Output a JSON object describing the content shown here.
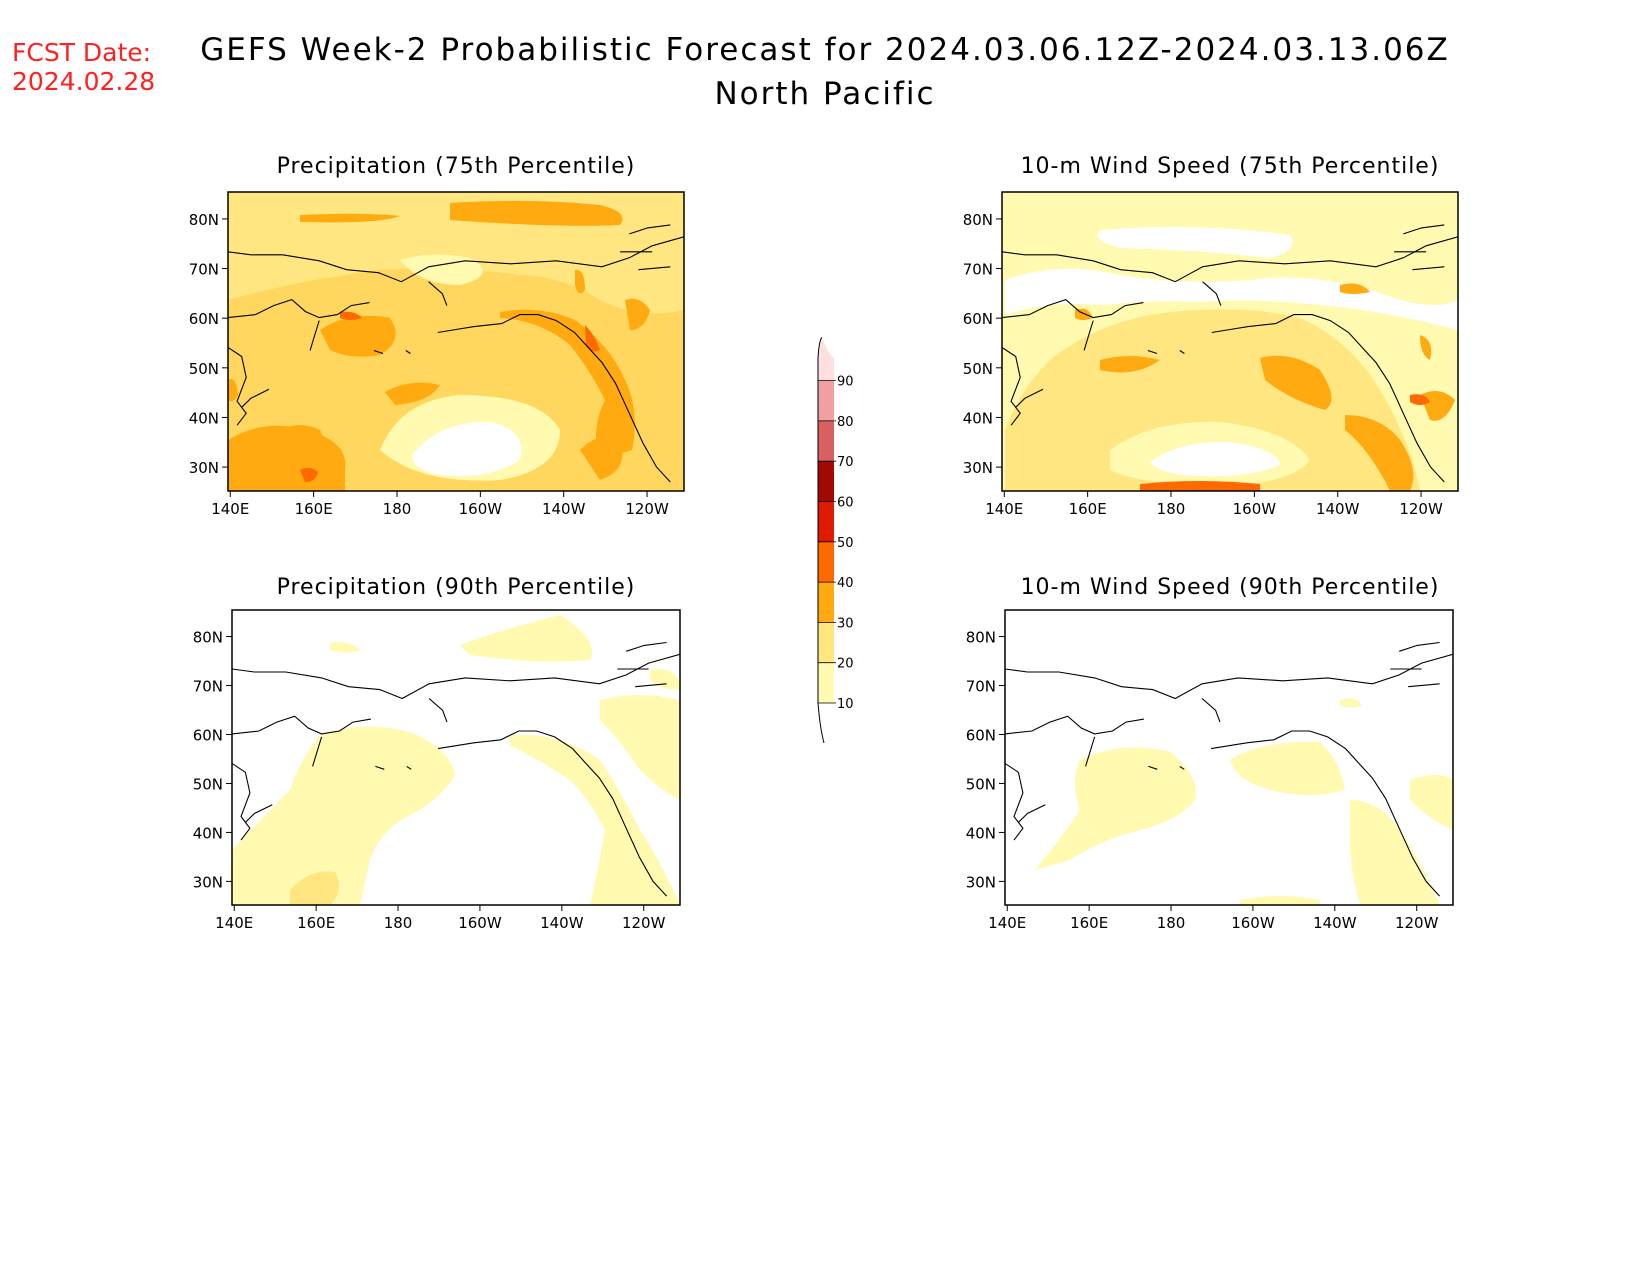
{
  "forecast_date": {
    "label": "FCST Date:",
    "value": "2024.02.28"
  },
  "title": {
    "line1": "GEFS Week-2 Probabilistic Forecast for 2024.03.06.12Z-2024.03.13.06Z",
    "line2": "North Pacific"
  },
  "panels": [
    {
      "title": "Precipitation (75th Percentile)"
    },
    {
      "title": "10-m Wind Speed (75th Percentile)"
    },
    {
      "title": "Precipitation (90th Percentile)"
    },
    {
      "title": "10-m Wind Speed (90th Percentile)"
    }
  ],
  "lat_labels": [
    "80N",
    "70N",
    "60N",
    "50N",
    "40N",
    "30N"
  ],
  "lon_labels": [
    "140E",
    "160E",
    "180",
    "160W",
    "140W",
    "120W"
  ],
  "colorbar": {
    "levels": [
      "10",
      "20",
      "30",
      "40",
      "50",
      "60",
      "70",
      "80",
      "90"
    ],
    "colors": [
      "#fffab0",
      "#ffe680",
      "#ffaa11",
      "#ff6a00",
      "#e01a00",
      "#a00a00",
      "#d96060",
      "#f0a0a0",
      "#ffe0e0"
    ]
  }
}
